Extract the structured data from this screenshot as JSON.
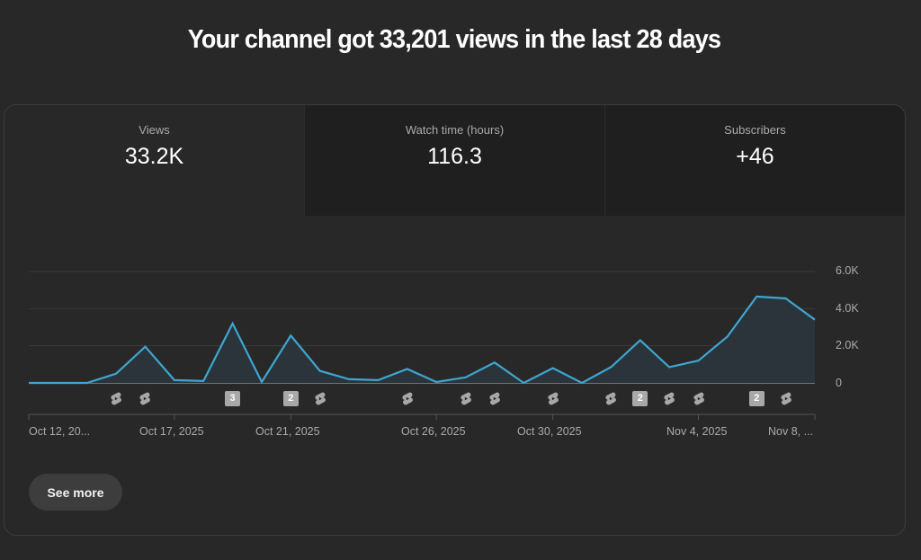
{
  "headline": "Your channel got 33,201 views in the last 28 days",
  "tabs": [
    {
      "label": "Views",
      "value": "33.2K",
      "active": true
    },
    {
      "label": "Watch time (hours)",
      "value": "116.3",
      "active": false
    },
    {
      "label": "Subscribers",
      "value": "+46",
      "active": false
    }
  ],
  "see_more_label": "See more",
  "colors": {
    "line": "#3ea6d0",
    "fill": "#2b343a",
    "background": "#282828",
    "inactive_tab": "#1f1f1f"
  },
  "chart_data": {
    "type": "line",
    "title": "Views",
    "xlabel": "",
    "ylabel": "Views",
    "ylim": [
      0,
      6000
    ],
    "y_ticks": [
      "0",
      "2.0K",
      "4.0K",
      "6.0K"
    ],
    "x_tick_labels": [
      "Oct 12, 20...",
      "Oct 17, 2025",
      "Oct 21, 2025",
      "Oct 26, 2025",
      "Oct 30, 2025",
      "Nov 4, 2025",
      "Nov 8, ..."
    ],
    "grid": true,
    "legend": "none",
    "x": [
      "Oct 12",
      "Oct 13",
      "Oct 14",
      "Oct 15",
      "Oct 16",
      "Oct 17",
      "Oct 18",
      "Oct 19",
      "Oct 20",
      "Oct 21",
      "Oct 22",
      "Oct 23",
      "Oct 24",
      "Oct 25",
      "Oct 26",
      "Oct 27",
      "Oct 28",
      "Oct 29",
      "Oct 30",
      "Oct 31",
      "Nov 1",
      "Nov 2",
      "Nov 3",
      "Nov 4",
      "Nov 5",
      "Nov 6",
      "Nov 7",
      "Nov 8"
    ],
    "series": [
      {
        "name": "Views",
        "values": [
          0,
          0,
          0,
          500,
          1950,
          150,
          100,
          3200,
          50,
          2550,
          650,
          200,
          150,
          750,
          50,
          300,
          1100,
          0,
          800,
          0,
          850,
          2300,
          850,
          1200,
          2500,
          4650,
          4550,
          3400
        ]
      }
    ],
    "upload_markers": [
      {
        "date": "Oct 15",
        "type": "short"
      },
      {
        "date": "Oct 16",
        "type": "short"
      },
      {
        "date": "Oct 19",
        "type": "count",
        "count": "3"
      },
      {
        "date": "Oct 21",
        "type": "count",
        "count": "2"
      },
      {
        "date": "Oct 22",
        "type": "short"
      },
      {
        "date": "Oct 25",
        "type": "short"
      },
      {
        "date": "Oct 27",
        "type": "short"
      },
      {
        "date": "Oct 28",
        "type": "short"
      },
      {
        "date": "Oct 30",
        "type": "short"
      },
      {
        "date": "Nov 1",
        "type": "short"
      },
      {
        "date": "Nov 2",
        "type": "count",
        "count": "2"
      },
      {
        "date": "Nov 3",
        "type": "short"
      },
      {
        "date": "Nov 4",
        "type": "short"
      },
      {
        "date": "Nov 6",
        "type": "count",
        "count": "2"
      },
      {
        "date": "Nov 7",
        "type": "short"
      }
    ]
  }
}
